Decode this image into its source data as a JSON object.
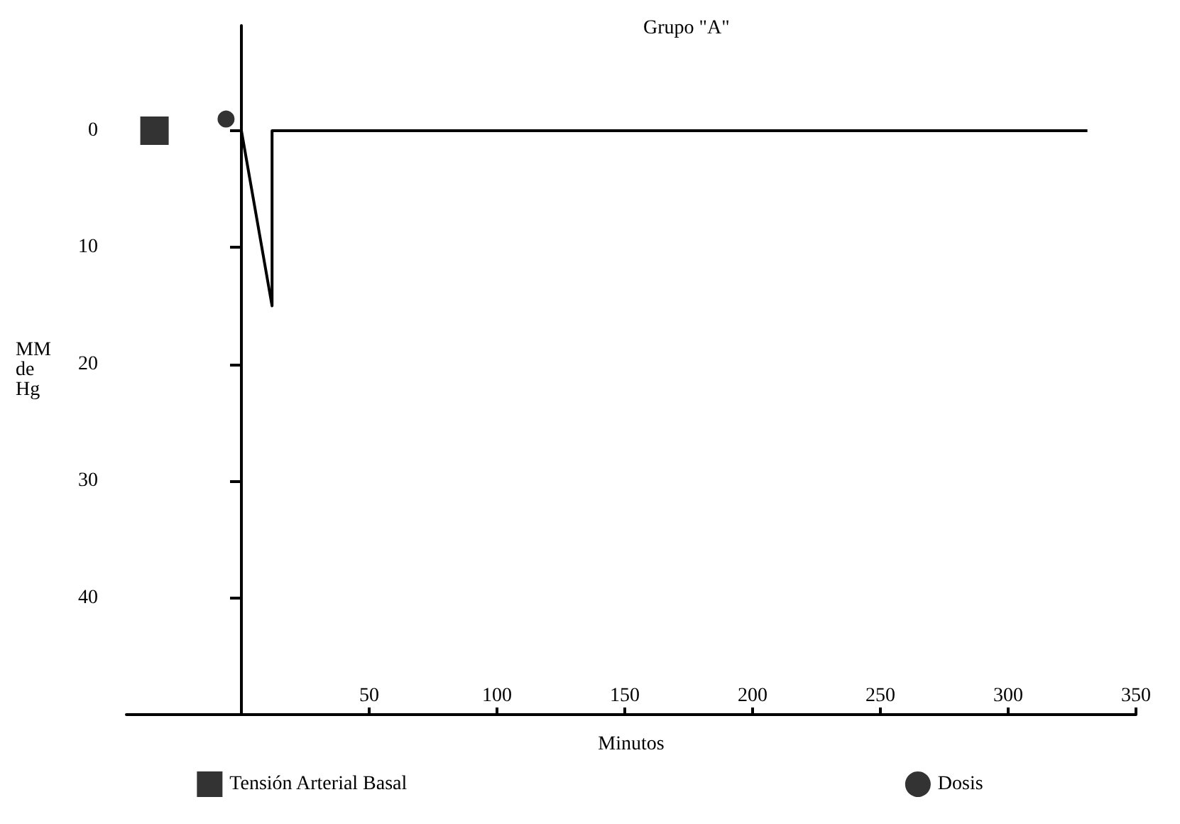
{
  "chart_data": {
    "type": "line",
    "title": "Grupo \"A\"",
    "xlabel": "Minutos",
    "ylabel": "MM\nde\nHg",
    "series": [
      {
        "color": "#000000",
        "x": [
          0,
          12,
          12,
          331
        ],
        "values": [
          0,
          15,
          0,
          0
        ],
        "marker": "none"
      },
      {
        "type": "scatter",
        "name": "Tensión Arterial Basal",
        "color": "#000000",
        "x": [
          -34
        ],
        "values": [
          0
        ],
        "marker": "square"
      },
      {
        "type": "scatter",
        "name": "Dosis",
        "color": "#000000",
        "x": [
          -6
        ],
        "values": [
          -1
        ],
        "marker": "circle"
      }
    ],
    "xlim": [
      -45,
      350
    ],
    "xticks": [
      50,
      100,
      150,
      200,
      250,
      300,
      350
    ],
    "ylim": [
      50,
      -9
    ],
    "yticks": [
      0,
      10,
      20,
      30,
      40
    ],
    "grid": false,
    "legend": "bottom"
  }
}
